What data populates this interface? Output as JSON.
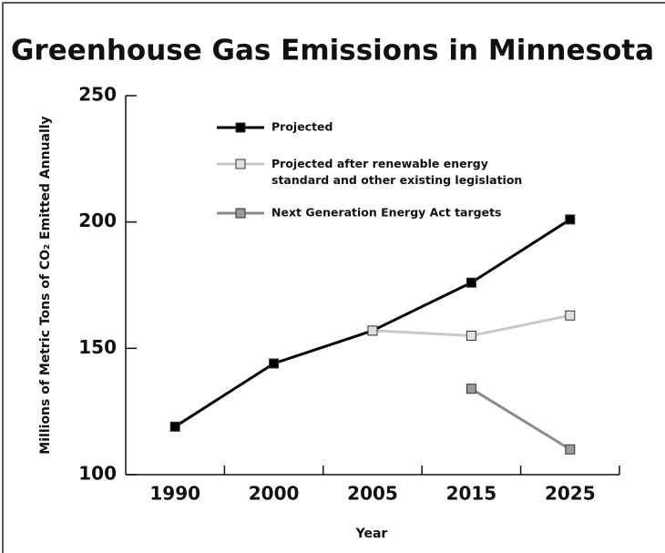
{
  "chart_data": {
    "type": "line",
    "title": "Greenhouse Gas Emissions in Minnesota",
    "x_label": "Year",
    "y_label": "Millions of Metric Tons of CO₂ Emitted Annually",
    "categories": [
      "1990",
      "2000",
      "2005",
      "2015",
      "2025"
    ],
    "series": [
      {
        "name": "Projected",
        "color": "#000000",
        "marker_fill": "#000000",
        "values": [
          119,
          144,
          157,
          176,
          201
        ]
      },
      {
        "name": "Projected after renewable energy standard and other existing legislation",
        "color": "#c8c8c8",
        "marker_fill": "#e0e0e0",
        "values": [
          null,
          null,
          157,
          155,
          163
        ]
      },
      {
        "name": "Next Generation Energy Act targets",
        "color": "#8c8c8c",
        "marker_fill": "#9a9a9a",
        "values": [
          null,
          null,
          null,
          134,
          110
        ]
      }
    ],
    "ylim": [
      100,
      250
    ],
    "yticks": [
      100,
      150,
      200,
      250
    ],
    "grid": false
  }
}
